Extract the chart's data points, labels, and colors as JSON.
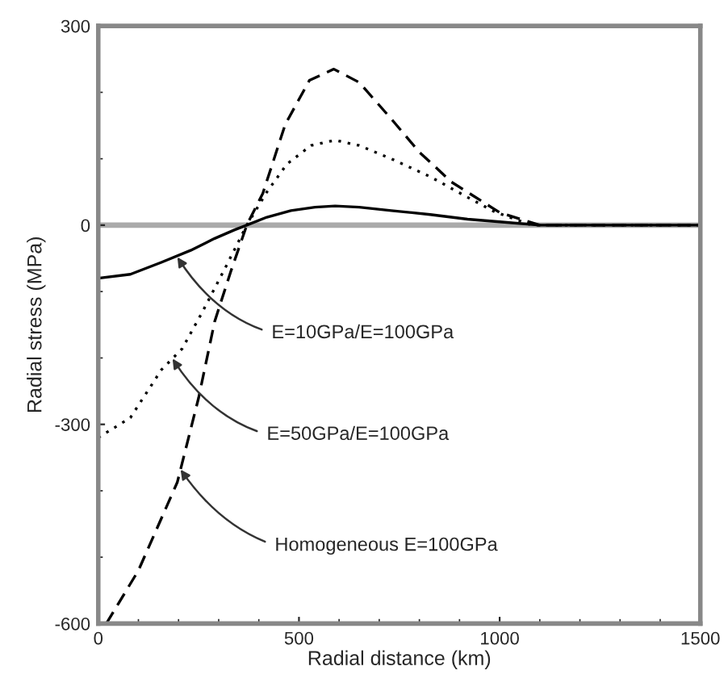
{
  "chart_data": {
    "type": "line",
    "xlabel": "Radial distance (km)",
    "ylabel": "Radial stress (MPa)",
    "xlim": [
      0,
      1500
    ],
    "xticks": [
      0,
      500,
      1000,
      1500
    ],
    "ylim": [
      -600,
      300
    ],
    "yticks": [
      -600,
      -300,
      0,
      300
    ],
    "grid": false,
    "marker": "none",
    "ref_lines": [
      {
        "axis": "y",
        "value": 0,
        "label": null,
        "color": "#aaaaaa"
      }
    ],
    "series": [
      {
        "color": "#000000",
        "line_style": "solid",
        "x": [
          0,
          80,
          157,
          230,
          290,
          340,
          370,
          420,
          480,
          540,
          590,
          650,
          730,
          827,
          920,
          1000,
          1100,
          1200,
          1300,
          1400,
          1500
        ],
        "values": [
          -80,
          -74,
          -56,
          -38,
          -20,
          -7,
          0,
          12,
          22,
          27,
          29,
          27,
          22,
          16,
          9,
          5,
          0,
          0,
          0,
          0,
          0
        ]
      },
      {
        "color": "#000000",
        "line_style": "dotted",
        "x": [
          0,
          80,
          157,
          209,
          260,
          320,
          370,
          420,
          470,
          530,
          590,
          650,
          730,
          827,
          920,
          988,
          1080,
          1200,
          1300,
          1400,
          1500
        ],
        "values": [
          -320,
          -290,
          -218,
          -186,
          -130,
          -60,
          0,
          50,
          92,
          120,
          128,
          120,
          100,
          73,
          42,
          20,
          0,
          0,
          0,
          0,
          0
        ]
      },
      {
        "color": "#000000",
        "line_style": "dashed",
        "x": [
          20,
          100,
          197,
          250,
          290,
          330,
          370,
          410,
          466,
          526,
          587,
          650,
          730,
          800,
          880,
          1000,
          1100,
          1200,
          1300,
          1400,
          1500
        ],
        "values": [
          -600,
          -520,
          -387,
          -260,
          -145,
          -70,
          0,
          48,
          152,
          218,
          235,
          215,
          160,
          110,
          65,
          19,
          0,
          0,
          0,
          0,
          0
        ]
      }
    ],
    "annotations": [
      {
        "text": "E=10GPa/E=100GPa",
        "x": 197,
        "y": -48
      },
      {
        "text": "E=50GPa/E=100GPa",
        "x": 185,
        "y": -201
      },
      {
        "text": "Homogeneous E=100GPa",
        "x": 205,
        "y": -368
      }
    ]
  }
}
